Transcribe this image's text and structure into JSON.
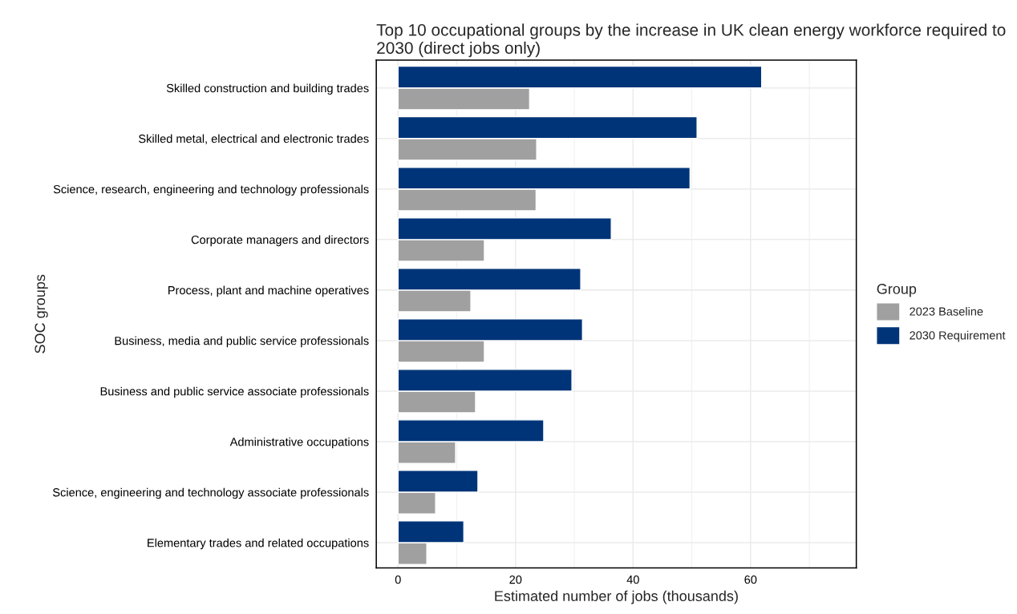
{
  "chart_data": {
    "type": "bar",
    "orientation": "horizontal",
    "title": "Top 10 occupational groups by the increase in UK clean energy workforce required to 2030 (direct jobs only)",
    "xlabel": "Estimated number of jobs (thousands)",
    "ylabel": "SOC groups",
    "legend_title": "Group",
    "legend": "right",
    "grid": true,
    "categories": [
      "Skilled construction and building trades",
      "Skilled metal, electrical and electronic trades",
      "Science, research, engineering and technology professionals",
      "Corporate managers and directors",
      "Process, plant and machine operatives",
      "Business, media and public service professionals",
      "Business and public service associate professionals",
      "Administrative occupations",
      "Science, engineering and technology associate professionals",
      "Elementary trades and related occupations"
    ],
    "series": [
      {
        "name": "2023 Baseline",
        "color": "#a0a0a0",
        "values": [
          22.4,
          23.6,
          23.5,
          14.7,
          12.4,
          14.7,
          13.2,
          9.8,
          6.4,
          4.9
        ]
      },
      {
        "name": "2030 Requirement",
        "color": "#003478",
        "values": [
          61.9,
          50.9,
          49.7,
          36.3,
          31.1,
          31.4,
          29.6,
          24.8,
          13.6,
          11.2
        ]
      }
    ],
    "xlim": [
      -3.7,
      78
    ],
    "xticks": [
      0,
      20,
      40,
      60
    ]
  }
}
